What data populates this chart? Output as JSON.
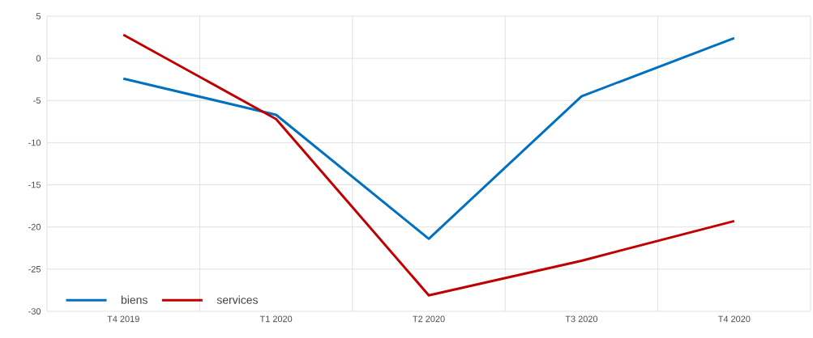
{
  "chart_data": {
    "type": "line",
    "categories": [
      "T4 2019",
      "T1 2020",
      "T2 2020",
      "T3 2020",
      "T4 2020"
    ],
    "series": [
      {
        "name": "biens",
        "color": "#0070c0",
        "values": [
          -2.4,
          -6.7,
          -21.4,
          -4.5,
          2.4
        ]
      },
      {
        "name": "services",
        "color": "#c00000",
        "values": [
          2.8,
          -7.2,
          -28.1,
          -24.0,
          -19.3
        ]
      }
    ],
    "ylim": [
      -30,
      5
    ],
    "yticks": [
      -30,
      -25,
      -20,
      -15,
      -10,
      -5,
      0,
      5
    ],
    "grid": true,
    "legend": "bottom left",
    "marker": "none",
    "line_style": "solid"
  }
}
